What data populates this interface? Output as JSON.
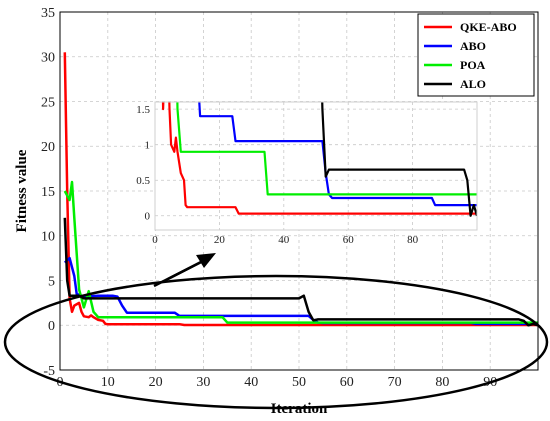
{
  "chart_data": {
    "type": "line",
    "xlabel": "Iteration",
    "ylabel": "Fitness value",
    "xlim": [
      0,
      100
    ],
    "ylim": [
      -5,
      35
    ],
    "xticks": [
      0,
      10,
      20,
      30,
      40,
      50,
      60,
      70,
      80,
      90
    ],
    "yticks": [
      -5,
      0,
      5,
      10,
      15,
      20,
      25,
      30,
      35
    ],
    "grid": true,
    "grid_style": "dashed",
    "legend_position": "top-right",
    "series": [
      {
        "name": "QKE-ABO",
        "color": "#ff0000",
        "points": [
          [
            1,
            30.5
          ],
          [
            1.5,
            15
          ],
          [
            2,
            3
          ],
          [
            2.5,
            1.5
          ],
          [
            3,
            2.2
          ],
          [
            4,
            2.5
          ],
          [
            4.5,
            1.5
          ],
          [
            5,
            1.0
          ],
          [
            6,
            0.9
          ],
          [
            6.5,
            1.1
          ],
          [
            7,
            0.9
          ],
          [
            8,
            0.6
          ],
          [
            9,
            0.5
          ],
          [
            9.5,
            0.15
          ],
          [
            10,
            0.12
          ],
          [
            25,
            0.12
          ],
          [
            26,
            0.03
          ],
          [
            100,
            0.03
          ]
        ]
      },
      {
        "name": "ABO",
        "color": "#0000ff",
        "points": [
          [
            1,
            7.0
          ],
          [
            2,
            7.5
          ],
          [
            3,
            5.5
          ],
          [
            3.5,
            3.5
          ],
          [
            5,
            3.2
          ],
          [
            8,
            3.3
          ],
          [
            11,
            3.3
          ],
          [
            12,
            3.2
          ],
          [
            13,
            2.2
          ],
          [
            14,
            1.4
          ],
          [
            24,
            1.4
          ],
          [
            25,
            1.05
          ],
          [
            52,
            1.05
          ],
          [
            53,
            0.6
          ],
          [
            54,
            0.3
          ],
          [
            55,
            0.25
          ],
          [
            86,
            0.25
          ],
          [
            87,
            0.15
          ],
          [
            100,
            0.15
          ]
        ]
      },
      {
        "name": "POA",
        "color": "#00ee00",
        "points": [
          [
            1,
            15.0
          ],
          [
            2,
            14.0
          ],
          [
            2.5,
            16.0
          ],
          [
            3,
            12.0
          ],
          [
            4,
            4.0
          ],
          [
            5,
            2.0
          ],
          [
            6,
            3.8
          ],
          [
            7,
            1.5
          ],
          [
            8,
            0.9
          ],
          [
            34,
            0.9
          ],
          [
            35,
            0.3
          ],
          [
            100,
            0.3
          ]
        ]
      },
      {
        "name": "ALO",
        "color": "#000000",
        "points": [
          [
            1,
            12.0
          ],
          [
            1.5,
            5.0
          ],
          [
            2,
            3.3
          ],
          [
            4,
            3.3
          ],
          [
            5,
            3.0
          ],
          [
            10,
            3.0
          ],
          [
            20,
            3.0
          ],
          [
            50,
            3.0
          ],
          [
            51,
            3.3
          ],
          [
            52,
            1.5
          ],
          [
            53,
            0.55
          ],
          [
            54,
            0.65
          ],
          [
            96,
            0.65
          ],
          [
            97,
            0.5
          ],
          [
            98,
            0.0
          ],
          [
            99,
            0.15
          ],
          [
            100,
            0.0
          ]
        ]
      }
    ],
    "inset": {
      "xlim": [
        0,
        100
      ],
      "ylim": [
        -0.2,
        1.6
      ],
      "xticks": [
        0,
        20,
        40,
        60,
        80
      ],
      "yticks": [
        0,
        0.5,
        1,
        1.5
      ]
    }
  }
}
